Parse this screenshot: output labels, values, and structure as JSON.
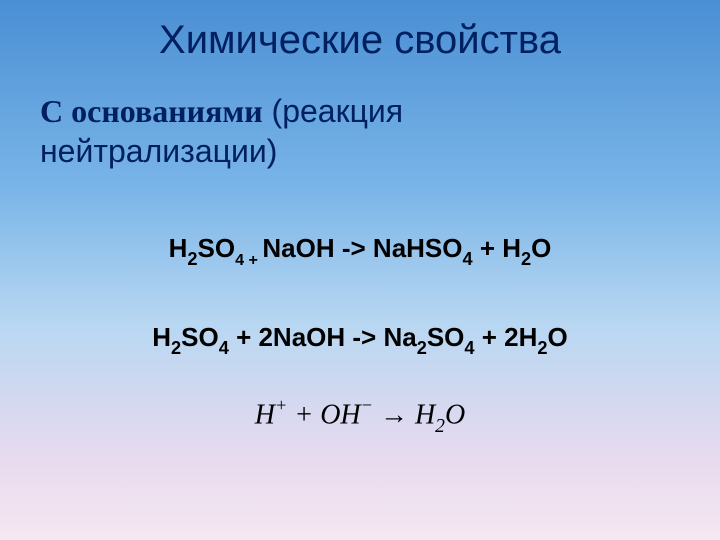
{
  "title": "Химические свойства",
  "subtitle": {
    "bold": "С основаниями",
    "regular_line1": " (реакция",
    "regular_line2": "нейтрализации)"
  },
  "equations": {
    "eq1": {
      "p1": "H",
      "s1": "2",
      "p2": "SO",
      "s2": "4 + ",
      "p3": "NaOH -> NaHSO",
      "s3": "4",
      "p4": " + H",
      "s4": "2",
      "p5": "O"
    },
    "eq2": {
      "p1": "H",
      "s1": "2",
      "p2": "SO",
      "s2": "4",
      "p3": " + 2NaOH -> Na",
      "s3": "2",
      "p4": "SO",
      "s4": "4",
      "p5": " + 2H",
      "s5": "2",
      "p6": "O"
    },
    "eq3": {
      "p1": "H",
      "sup1": "+",
      "p2": " + OH",
      "sup2": "−",
      "arrow": " → ",
      "p3": "H",
      "sub1": "2",
      "p4": "O"
    }
  },
  "styling": {
    "title_color": "#002060",
    "title_fontsize": 40,
    "subtitle_fontsize": 32,
    "equation_fontsize": 26,
    "equation_color": "#000000",
    "background_gradient": [
      "#4a8fd4",
      "#7ab5e8",
      "#b8d7f2",
      "#e8daef",
      "#f5e8f0"
    ]
  }
}
